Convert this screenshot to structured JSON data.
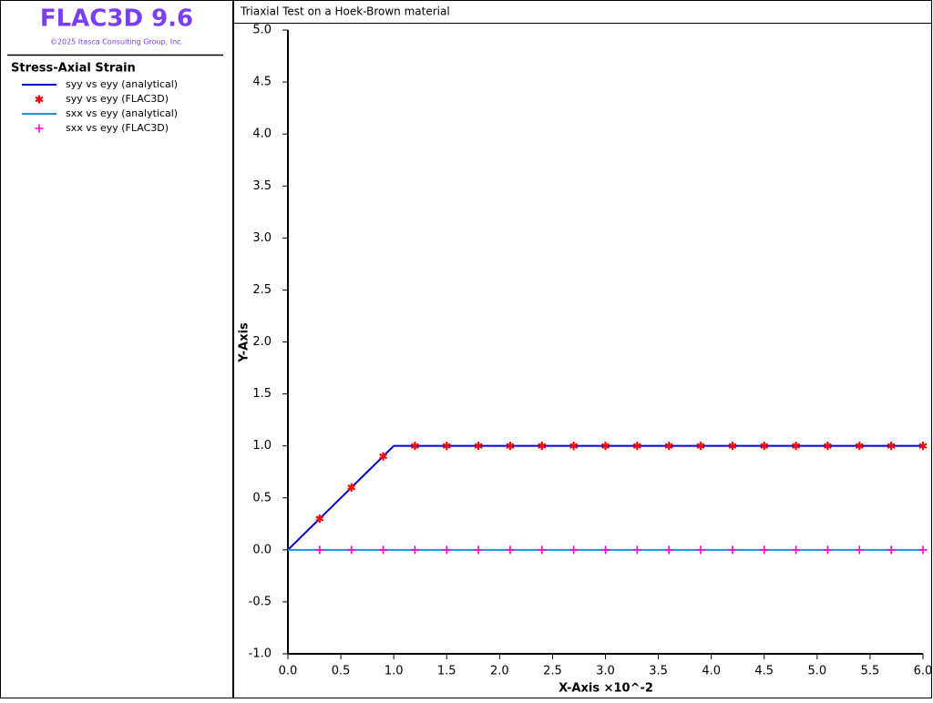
{
  "sidebar": {
    "product": "FLAC3D 9.6",
    "copyright": "©2025 Itasca Consulting Group, Inc.",
    "plot_name": "Stress-Axial Strain"
  },
  "chart_data": {
    "type": "line",
    "title": "Triaxial Test on a Hoek-Brown material",
    "x_label": "X-Axis ×10^-2",
    "y_label": "Y-Axis",
    "xlim": [
      0,
      6
    ],
    "ylim": [
      -1,
      5
    ],
    "xticks": [
      {
        "value": 0,
        "label": "0.0"
      },
      {
        "value": 0.5,
        "label": "0.5"
      },
      {
        "value": 1,
        "label": "1.0"
      },
      {
        "value": 1.5,
        "label": "1.5"
      },
      {
        "value": 2,
        "label": "2.0"
      },
      {
        "value": 2.5,
        "label": "2.5"
      },
      {
        "value": 3,
        "label": "3.0"
      },
      {
        "value": 3.5,
        "label": "3.5"
      },
      {
        "value": 4,
        "label": "4.0"
      },
      {
        "value": 4.5,
        "label": "4.5"
      },
      {
        "value": 5,
        "label": "5.0"
      },
      {
        "value": 5.5,
        "label": "5.5"
      },
      {
        "value": 6,
        "label": "6.0"
      }
    ],
    "yticks": [
      {
        "value": -1,
        "label": "-1.0"
      },
      {
        "value": -0.5,
        "label": "-0.5"
      },
      {
        "value": 0,
        "label": "0.0"
      },
      {
        "value": 0.5,
        "label": "0.5"
      },
      {
        "value": 1,
        "label": "1.0"
      },
      {
        "value": 1.5,
        "label": "1.5"
      },
      {
        "value": 2,
        "label": "2.0"
      },
      {
        "value": 2.5,
        "label": "2.5"
      },
      {
        "value": 3,
        "label": "3.0"
      },
      {
        "value": 3.5,
        "label": "3.5"
      },
      {
        "value": 4,
        "label": "4.0"
      },
      {
        "value": 4.5,
        "label": "4.5"
      },
      {
        "value": 5,
        "label": "5.0"
      }
    ],
    "series": [
      {
        "name": "syy vs eyy (analytical)",
        "color": "#0000c8",
        "mode": "line",
        "x": [
          0,
          1,
          6
        ],
        "values": [
          0,
          1,
          1
        ]
      },
      {
        "name": "syy vs eyy (FLAC3D)",
        "color": "#ff0000",
        "mode": "markers",
        "marker": "asterisk",
        "x": [
          0.3,
          0.6,
          0.9,
          1.2,
          1.5,
          1.8,
          2.1,
          2.4,
          2.7,
          3.0,
          3.3,
          3.6,
          3.9,
          4.2,
          4.5,
          4.8,
          5.1,
          5.4,
          5.7,
          6.0
        ],
        "values": [
          0.3,
          0.6,
          0.9,
          1,
          1,
          1,
          1,
          1,
          1,
          1,
          1,
          1,
          1,
          1,
          1,
          1,
          1,
          1,
          1,
          1
        ]
      },
      {
        "name": "sxx vs eyy (analytical)",
        "color": "#1e90e0",
        "mode": "line",
        "x": [
          0,
          6
        ],
        "values": [
          0,
          0
        ]
      },
      {
        "name": "sxx vs eyy (FLAC3D)",
        "color": "#ff00cc",
        "mode": "markers",
        "marker": "plus",
        "x": [
          0.3,
          0.6,
          0.9,
          1.2,
          1.5,
          1.8,
          2.1,
          2.4,
          2.7,
          3.0,
          3.3,
          3.6,
          3.9,
          4.2,
          4.5,
          4.8,
          5.1,
          5.4,
          5.7,
          6.0
        ],
        "values": [
          0,
          0,
          0,
          0,
          0,
          0,
          0,
          0,
          0,
          0,
          0,
          0,
          0,
          0,
          0,
          0,
          0,
          0,
          0,
          0
        ]
      }
    ]
  }
}
